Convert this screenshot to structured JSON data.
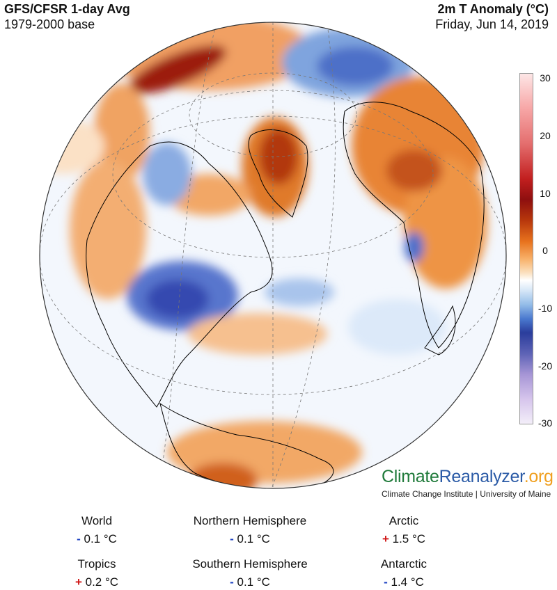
{
  "header": {
    "title_left": "GFS/CFSR 1-day Avg",
    "subtitle_left": "1979-2000 base",
    "title_right": "2m T Anomaly (°C)",
    "subtitle_right": "Friday, Jun 14, 2019"
  },
  "colorbar": {
    "ticks": [
      "30",
      "20",
      "10",
      "0",
      "-10",
      "-20",
      "-30"
    ],
    "colors": {
      "max": "#fde6e6",
      "warm": "#8e0f0f",
      "orange": "#e8731e",
      "zero": "#ffffff",
      "cool": "#2a3d9c",
      "min": "#f3eef9"
    }
  },
  "map": {
    "projection": "orthographic, North Atlantic centered",
    "colors": {
      "ocean_neutral": "#f3f7fd",
      "warm_anomaly": "#f4a055",
      "strong_warm": "#a11a10",
      "cold_anomaly": "#3a5cc4",
      "land_outline": "#000000",
      "graticule": "#666666"
    }
  },
  "brand": {
    "part1": "Climate",
    "part2": "Reanalyzer",
    "part3": ".org",
    "subtitle": "Climate Change Institute | University of Maine"
  },
  "stats": [
    {
      "label": "World",
      "sign": "-",
      "value": "0.1 °C"
    },
    {
      "label": "Northern Hemisphere",
      "sign": "-",
      "value": "0.1 °C"
    },
    {
      "label": "Arctic",
      "sign": "+",
      "value": "1.5 °C"
    },
    {
      "label": "Tropics",
      "sign": "+",
      "value": "0.2 °C"
    },
    {
      "label": "Southern Hemisphere",
      "sign": "-",
      "value": "0.1 °C"
    },
    {
      "label": "Antarctic",
      "sign": "-",
      "value": "1.4 °C"
    }
  ]
}
